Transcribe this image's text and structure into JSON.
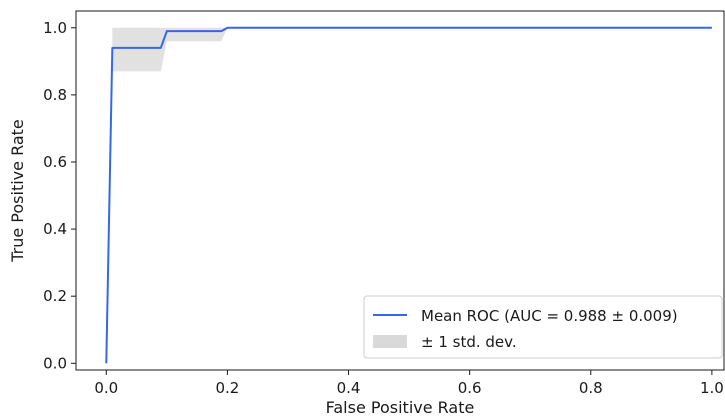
{
  "chart_data": {
    "type": "line",
    "title": "",
    "xlabel": "False Positive Rate",
    "ylabel": "True Positive Rate",
    "xlim": [
      -0.05,
      1.02
    ],
    "ylim": [
      -0.02,
      1.05
    ],
    "xticks": [
      0.0,
      0.2,
      0.4,
      0.6,
      0.8,
      1.0
    ],
    "xtick_labels": [
      "0.0",
      "0.2",
      "0.4",
      "0.6",
      "0.8",
      "1.0"
    ],
    "yticks": [
      0.0,
      0.2,
      0.4,
      0.6,
      0.8,
      1.0
    ],
    "ytick_labels": [
      "0.0",
      "0.2",
      "0.4",
      "0.6",
      "0.8",
      "1.0"
    ],
    "grid": false,
    "legend_position": "lower right",
    "series": [
      {
        "name": "Mean ROC (AUC = 0.988 ± 0.009)",
        "kind": "line",
        "color": "#3567e8",
        "x": [
          0.0,
          0.01,
          0.09,
          0.1,
          0.19,
          0.2,
          1.0
        ],
        "y": [
          0.0,
          0.94,
          0.94,
          0.99,
          0.99,
          1.0,
          1.0
        ]
      },
      {
        "name": "± 1 std. dev.",
        "kind": "band",
        "color": "#d9d9d9",
        "x": [
          0.01,
          0.09,
          0.1,
          0.19,
          0.2,
          1.0
        ],
        "lower": [
          0.87,
          0.87,
          0.96,
          0.96,
          1.0,
          1.0
        ],
        "upper": [
          1.0,
          1.0,
          1.0,
          1.0,
          1.0,
          1.0
        ]
      }
    ]
  }
}
